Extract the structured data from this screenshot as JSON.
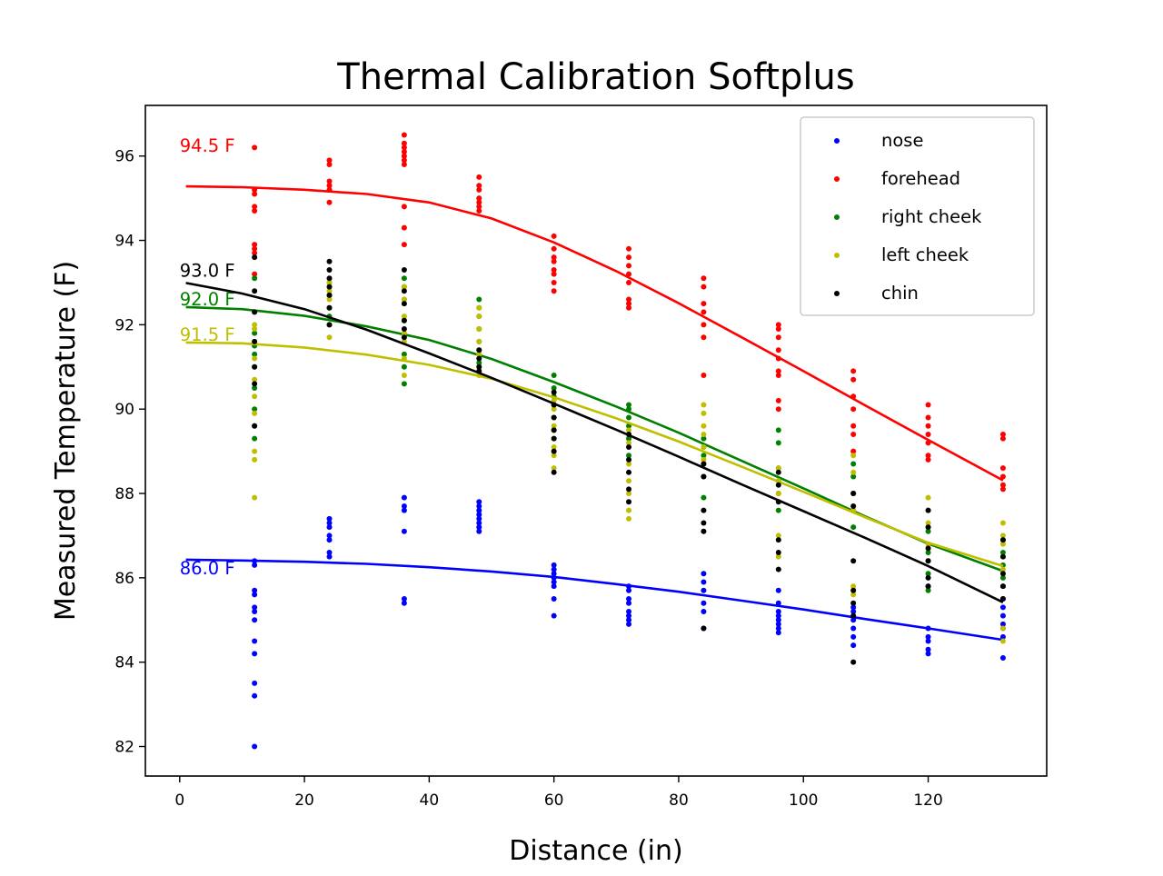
{
  "chart_data": {
    "type": "scatter",
    "title": "Thermal Calibration Softplus",
    "xlabel": "Distance (in)",
    "ylabel": "Measured Temperature (F)",
    "xlim": [
      -5.5,
      139
    ],
    "ylim": [
      81.3,
      97.2
    ],
    "xticks": [
      0,
      20,
      40,
      60,
      80,
      100,
      120
    ],
    "yticks": [
      82,
      84,
      86,
      88,
      90,
      92,
      94,
      96
    ],
    "grid": false,
    "legend_position": "top-right",
    "series": [
      {
        "name": "nose",
        "color": "#0000ff",
        "points": {
          "12": [
            82.0,
            83.2,
            83.5,
            84.2,
            84.5,
            85.0,
            85.2,
            85.3,
            85.6,
            85.7,
            86.3,
            86.4
          ],
          "24": [
            86.6,
            86.5,
            86.9,
            87.0,
            87.2,
            87.3,
            87.4
          ],
          "36": [
            85.4,
            85.5,
            87.1,
            87.6,
            87.7,
            87.9
          ],
          "48": [
            87.1,
            87.2,
            87.3,
            87.4,
            87.5,
            87.6,
            87.7,
            87.8
          ],
          "60": [
            85.1,
            85.5,
            85.8,
            85.9,
            86.0,
            86.1,
            86.2,
            86.3
          ],
          "72": [
            84.9,
            85.0,
            85.1,
            85.2,
            85.4,
            85.5,
            85.7,
            85.8
          ],
          "84": [
            84.8,
            85.2,
            85.4,
            85.7,
            85.9,
            86.1
          ],
          "96": [
            84.7,
            84.8,
            84.9,
            85.0,
            85.1,
            85.2,
            85.4,
            85.7
          ],
          "108": [
            84.4,
            84.6,
            84.8,
            85.0,
            85.2,
            85.3
          ],
          "120": [
            84.2,
            84.3,
            84.5,
            84.6,
            84.8
          ],
          "132": [
            84.1,
            84.6,
            84.8,
            84.9,
            85.1,
            85.3,
            85.5
          ]
        },
        "fit_label": "86.0 F",
        "fit": {
          "x": [
            1,
            10,
            20,
            30,
            40,
            50,
            60,
            70,
            80,
            90,
            100,
            110,
            120,
            132
          ],
          "y": [
            86.43,
            86.41,
            86.38,
            86.33,
            86.25,
            86.15,
            86.02,
            85.85,
            85.67,
            85.46,
            85.25,
            85.02,
            84.8,
            84.53
          ]
        }
      },
      {
        "name": "forehead",
        "color": "#ff0000",
        "points": {
          "12": [
            96.2,
            95.2,
            95.1,
            94.8,
            94.7,
            93.9,
            93.8,
            93.7,
            93.2
          ],
          "24": [
            95.9,
            95.8,
            95.4,
            95.3,
            95.2,
            94.9
          ],
          "36": [
            96.5,
            96.3,
            96.2,
            96.1,
            96.0,
            95.9,
            95.8,
            94.8,
            94.3,
            93.9
          ],
          "48": [
            95.5,
            95.3,
            95.2,
            95.0,
            94.9,
            94.8,
            94.7
          ],
          "60": [
            94.1,
            93.8,
            93.6,
            93.5,
            93.3,
            93.2,
            93.0,
            92.8
          ],
          "72": [
            93.8,
            93.6,
            93.4,
            93.2,
            93.0,
            92.6,
            92.5,
            92.4
          ],
          "84": [
            93.1,
            92.9,
            92.5,
            92.3,
            92.0,
            91.7,
            90.8
          ],
          "96": [
            92.0,
            91.9,
            91.7,
            91.4,
            91.2,
            90.9,
            90.8,
            90.2,
            90.0
          ],
          "108": [
            90.9,
            90.7,
            90.3,
            90.0,
            89.6,
            89.4,
            89.0
          ],
          "120": [
            90.1,
            89.8,
            89.6,
            89.4,
            89.2,
            88.9,
            88.8
          ],
          "132": [
            89.4,
            89.3,
            88.6,
            88.4,
            88.2,
            88.1
          ]
        },
        "fit_label": "94.5 F",
        "fit": {
          "x": [
            1,
            10,
            20,
            30,
            40,
            50,
            60,
            70,
            80,
            90,
            100,
            110,
            120,
            132
          ],
          "y": [
            95.28,
            95.26,
            95.2,
            95.1,
            94.9,
            94.52,
            93.95,
            93.27,
            92.51,
            91.71,
            90.9,
            90.08,
            89.27,
            88.31
          ]
        }
      },
      {
        "name": "right cheek",
        "color": "#008000",
        "points": {
          "12": [
            93.1,
            92.3,
            91.8,
            91.5,
            91.3,
            91.0,
            90.5,
            90.0,
            89.6,
            89.3
          ],
          "24": [
            93.0,
            92.7,
            92.4,
            92.2,
            92.0
          ],
          "36": [
            93.1,
            92.9,
            92.6,
            92.1,
            91.3,
            91.0,
            90.6
          ],
          "48": [
            92.6,
            92.4,
            92.2,
            91.9,
            91.6,
            91.4,
            91.1
          ],
          "60": [
            90.8,
            90.5,
            90.3,
            90.1,
            89.8,
            89.5
          ],
          "72": [
            90.1,
            90.0,
            89.8,
            89.6,
            89.3,
            88.9
          ],
          "84": [
            89.3,
            89.1,
            88.9,
            88.7,
            88.4,
            87.9
          ],
          "96": [
            89.5,
            89.2,
            88.6,
            88.3,
            88.0,
            87.6
          ],
          "108": [
            88.7,
            88.4,
            88.0,
            87.6,
            87.2
          ],
          "120": [
            87.1,
            86.6,
            86.4,
            86.1,
            85.8,
            85.7
          ],
          "132": [
            86.9,
            86.6,
            86.3,
            86.0,
            85.8
          ]
        },
        "fit_label": "92.0 F",
        "fit": {
          "x": [
            1,
            10,
            20,
            30,
            40,
            50,
            60,
            70,
            80,
            90,
            100,
            110,
            120,
            132
          ],
          "y": [
            92.42,
            92.37,
            92.21,
            91.96,
            91.64,
            91.19,
            90.64,
            90.06,
            89.44,
            88.78,
            88.12,
            87.45,
            86.81,
            86.16
          ]
        }
      },
      {
        "name": "left cheek",
        "color": "#bfbf00",
        "points": {
          "12": [
            87.9,
            88.8,
            89.0,
            89.9,
            90.3,
            90.7,
            91.2,
            91.6,
            91.9,
            92.0
          ],
          "24": [
            91.7,
            92.0,
            92.6,
            92.8,
            93.0
          ],
          "36": [
            90.8,
            91.2,
            91.6,
            91.8,
            92.2,
            92.6,
            92.9
          ],
          "48": [
            90.8,
            91.0,
            91.3,
            91.6,
            91.9,
            92.2,
            92.4
          ],
          "60": [
            88.6,
            88.9,
            89.1,
            89.3,
            89.6,
            89.8,
            90.0,
            90.2
          ],
          "72": [
            87.4,
            87.6,
            88.0,
            88.3,
            88.7,
            89.2,
            89.5
          ],
          "84": [
            88.8,
            89.1,
            89.4,
            89.6,
            89.9,
            90.1
          ],
          "96": [
            86.2,
            86.5,
            87.0,
            88.0,
            88.3,
            88.6
          ],
          "108": [
            85.6,
            85.8,
            87.6,
            88.0,
            88.5,
            88.9
          ],
          "120": [
            86.8,
            87.3,
            87.6,
            87.9
          ],
          "132": [
            84.5,
            84.8,
            86.2,
            86.5,
            86.8,
            87.0,
            87.3
          ]
        },
        "fit_label": "91.5 F",
        "fit": {
          "x": [
            1,
            10,
            20,
            30,
            40,
            50,
            60,
            70,
            80,
            90,
            100,
            110,
            120,
            132
          ],
          "y": [
            91.58,
            91.56,
            91.46,
            91.29,
            91.05,
            90.72,
            90.28,
            89.78,
            89.23,
            88.64,
            88.04,
            87.43,
            86.83,
            86.28
          ]
        }
      },
      {
        "name": "chin",
        "color": "#000000",
        "points": {
          "12": [
            93.6,
            92.8,
            92.3,
            91.6,
            91.0,
            90.6,
            89.6
          ],
          "24": [
            93.5,
            93.3,
            93.1,
            92.9,
            92.7,
            92.4,
            92.0
          ],
          "36": [
            93.3,
            92.8,
            92.5,
            92.1,
            91.9,
            91.7
          ],
          "48": [
            91.4,
            91.2,
            91.0,
            90.9
          ],
          "60": [
            90.4,
            90.1,
            89.8,
            89.5,
            89.3,
            89.0,
            88.5
          ],
          "72": [
            89.4,
            89.1,
            88.8,
            88.5,
            88.1,
            87.8
          ],
          "84": [
            88.7,
            88.4,
            87.6,
            87.3,
            87.1,
            84.8
          ],
          "96": [
            88.5,
            88.2,
            87.8,
            86.9,
            86.6,
            86.2
          ],
          "108": [
            88.0,
            87.7,
            86.4,
            85.7,
            85.4,
            85.1,
            84.0
          ],
          "120": [
            87.6,
            87.2,
            86.7,
            86.4,
            86.0,
            85.8
          ],
          "132": [
            86.9,
            86.5,
            86.1,
            85.8,
            85.5
          ]
        },
        "fit_label": "93.0 F",
        "fit": {
          "x": [
            1,
            10,
            20,
            30,
            40,
            50,
            60,
            70,
            80,
            90,
            100,
            110,
            120,
            132
          ],
          "y": [
            92.99,
            92.74,
            92.37,
            91.88,
            91.32,
            90.74,
            90.13,
            89.51,
            88.87,
            88.22,
            87.58,
            86.94,
            86.28,
            85.42
          ]
        }
      }
    ]
  }
}
